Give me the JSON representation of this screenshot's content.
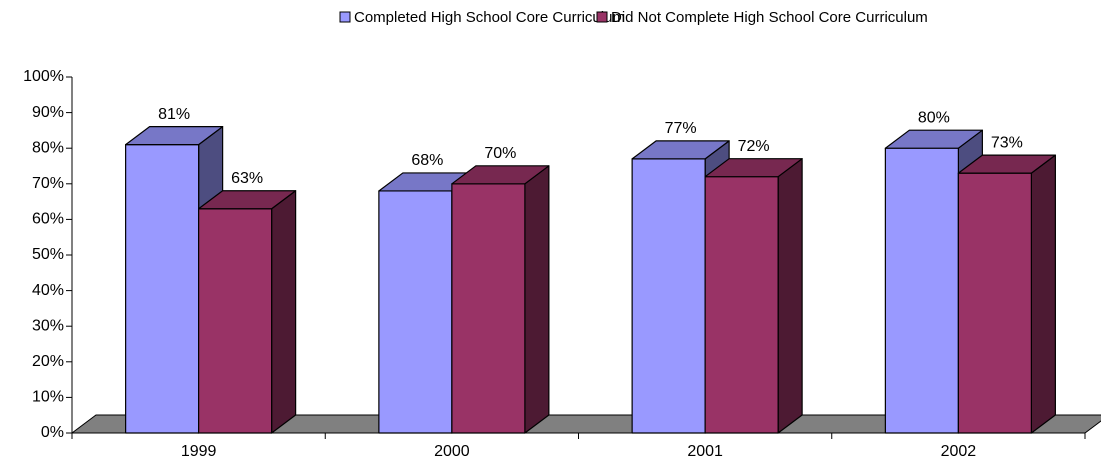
{
  "chart_data": {
    "type": "bar3d",
    "categories": [
      "1999",
      "2000",
      "2001",
      "2002"
    ],
    "series": [
      {
        "name": "Completed High School Core Curriculum",
        "color": "#9999ff",
        "values": [
          81,
          68,
          77,
          80
        ],
        "value_labels": [
          "81%",
          "68%",
          "77%",
          "80%"
        ]
      },
      {
        "name": "Did Not Complete High School Core Curriculum",
        "color": "#993366",
        "values": [
          63,
          70,
          72,
          73
        ],
        "value_labels": [
          "63%",
          "70%",
          "72%",
          "73%"
        ]
      }
    ],
    "ylim": [
      0,
      100
    ],
    "yticks": [
      {
        "value": 0,
        "label": "0%"
      },
      {
        "value": 10,
        "label": "10%"
      },
      {
        "value": 20,
        "label": "20%"
      },
      {
        "value": 30,
        "label": "30%"
      },
      {
        "value": 40,
        "label": "40%"
      },
      {
        "value": 50,
        "label": "50%"
      },
      {
        "value": 60,
        "label": "60%"
      },
      {
        "value": 70,
        "label": "70%"
      },
      {
        "value": 80,
        "label": "80%"
      },
      {
        "value": 90,
        "label": "90%"
      },
      {
        "value": 100,
        "label": "100%"
      }
    ],
    "legend": "top"
  }
}
